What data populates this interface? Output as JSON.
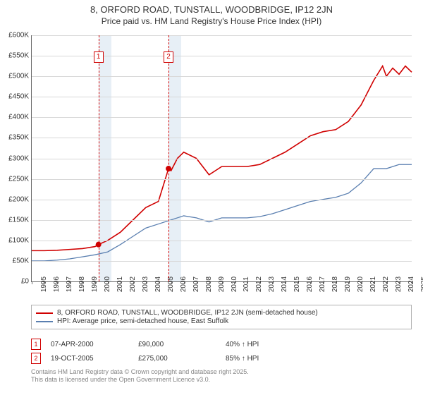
{
  "titles": {
    "line1": "8, ORFORD ROAD, TUNSTALL, WOODBRIDGE, IP12 2JN",
    "line2": "Price paid vs. HM Land Registry's House Price Index (HPI)"
  },
  "chart": {
    "type": "line",
    "background_color": "#ffffff",
    "grid_color": "#d8d8d8",
    "axis_color": "#666666",
    "x": {
      "min": 1995,
      "max": 2025,
      "ticks": [
        1995,
        1996,
        1997,
        1998,
        1999,
        2000,
        2001,
        2002,
        2003,
        2004,
        2005,
        2006,
        2007,
        2008,
        2009,
        2010,
        2011,
        2012,
        2013,
        2014,
        2015,
        2016,
        2017,
        2018,
        2019,
        2020,
        2021,
        2022,
        2023,
        2024,
        2025
      ]
    },
    "y": {
      "min": 0,
      "max": 600000,
      "ticks": [
        0,
        50000,
        100000,
        150000,
        200000,
        250000,
        300000,
        350000,
        400000,
        450000,
        500000,
        550000,
        600000
      ],
      "tick_labels": [
        "£0",
        "£50K",
        "£100K",
        "£150K",
        "£200K",
        "£250K",
        "£300K",
        "£350K",
        "£400K",
        "£450K",
        "£500K",
        "£550K",
        "£600K"
      ]
    },
    "shaded_ranges": [
      {
        "from": 2000.27,
        "to": 2001.27,
        "color": "#e7eff6"
      },
      {
        "from": 2005.8,
        "to": 2006.8,
        "color": "#e7eff6"
      }
    ],
    "event_lines": [
      {
        "x": 2000.27,
        "label": "1",
        "label_y": 560000
      },
      {
        "x": 2005.8,
        "label": "2",
        "label_y": 560000
      }
    ],
    "series": [
      {
        "name": "property",
        "color": "#d00000",
        "line_width": 1.6,
        "legend": "8, ORFORD ROAD, TUNSTALL, WOODBRIDGE, IP12 2JN (semi-detached house)",
        "points": [
          [
            1995,
            75000
          ],
          [
            1996,
            75000
          ],
          [
            1997,
            76000
          ],
          [
            1998,
            78000
          ],
          [
            1999,
            80000
          ],
          [
            2000,
            85000
          ],
          [
            2000.27,
            90000
          ],
          [
            2001,
            100000
          ],
          [
            2002,
            120000
          ],
          [
            2003,
            150000
          ],
          [
            2004,
            180000
          ],
          [
            2005,
            195000
          ],
          [
            2005.8,
            275000
          ],
          [
            2006,
            270000
          ],
          [
            2006.5,
            300000
          ],
          [
            2007,
            315000
          ],
          [
            2008,
            300000
          ],
          [
            2009,
            260000
          ],
          [
            2010,
            280000
          ],
          [
            2011,
            280000
          ],
          [
            2012,
            280000
          ],
          [
            2013,
            285000
          ],
          [
            2014,
            300000
          ],
          [
            2015,
            315000
          ],
          [
            2016,
            335000
          ],
          [
            2017,
            355000
          ],
          [
            2018,
            365000
          ],
          [
            2019,
            370000
          ],
          [
            2020,
            390000
          ],
          [
            2021,
            430000
          ],
          [
            2022,
            490000
          ],
          [
            2022.7,
            525000
          ],
          [
            2023,
            500000
          ],
          [
            2023.5,
            520000
          ],
          [
            2024,
            505000
          ],
          [
            2024.5,
            525000
          ],
          [
            2025,
            510000
          ]
        ]
      },
      {
        "name": "hpi",
        "color": "#5a7fb0",
        "line_width": 1.3,
        "legend": "HPI: Average price, semi-detached house, East Suffolk",
        "points": [
          [
            1995,
            50000
          ],
          [
            1996,
            50000
          ],
          [
            1997,
            52000
          ],
          [
            1998,
            55000
          ],
          [
            1999,
            60000
          ],
          [
            2000,
            65000
          ],
          [
            2001,
            72000
          ],
          [
            2002,
            90000
          ],
          [
            2003,
            110000
          ],
          [
            2004,
            130000
          ],
          [
            2005,
            140000
          ],
          [
            2006,
            150000
          ],
          [
            2007,
            160000
          ],
          [
            2008,
            155000
          ],
          [
            2009,
            145000
          ],
          [
            2010,
            155000
          ],
          [
            2011,
            155000
          ],
          [
            2012,
            155000
          ],
          [
            2013,
            158000
          ],
          [
            2014,
            165000
          ],
          [
            2015,
            175000
          ],
          [
            2016,
            185000
          ],
          [
            2017,
            195000
          ],
          [
            2018,
            200000
          ],
          [
            2019,
            205000
          ],
          [
            2020,
            215000
          ],
          [
            2021,
            240000
          ],
          [
            2022,
            275000
          ],
          [
            2023,
            275000
          ],
          [
            2024,
            285000
          ],
          [
            2025,
            285000
          ]
        ]
      }
    ],
    "sale_markers": [
      {
        "x": 2000.27,
        "y": 90000,
        "color": "#d00000"
      },
      {
        "x": 2005.8,
        "y": 275000,
        "color": "#d00000"
      }
    ]
  },
  "legend_title_fontsize": 10,
  "sales": [
    {
      "marker": "1",
      "date": "07-APR-2000",
      "price": "£90,000",
      "pct": "40% ↑ HPI"
    },
    {
      "marker": "2",
      "date": "19-OCT-2005",
      "price": "£275,000",
      "pct": "85% ↑ HPI"
    }
  ],
  "license": {
    "line1": "Contains HM Land Registry data © Crown copyright and database right 2025.",
    "line2": "This data is licensed under the Open Government Licence v3.0."
  }
}
